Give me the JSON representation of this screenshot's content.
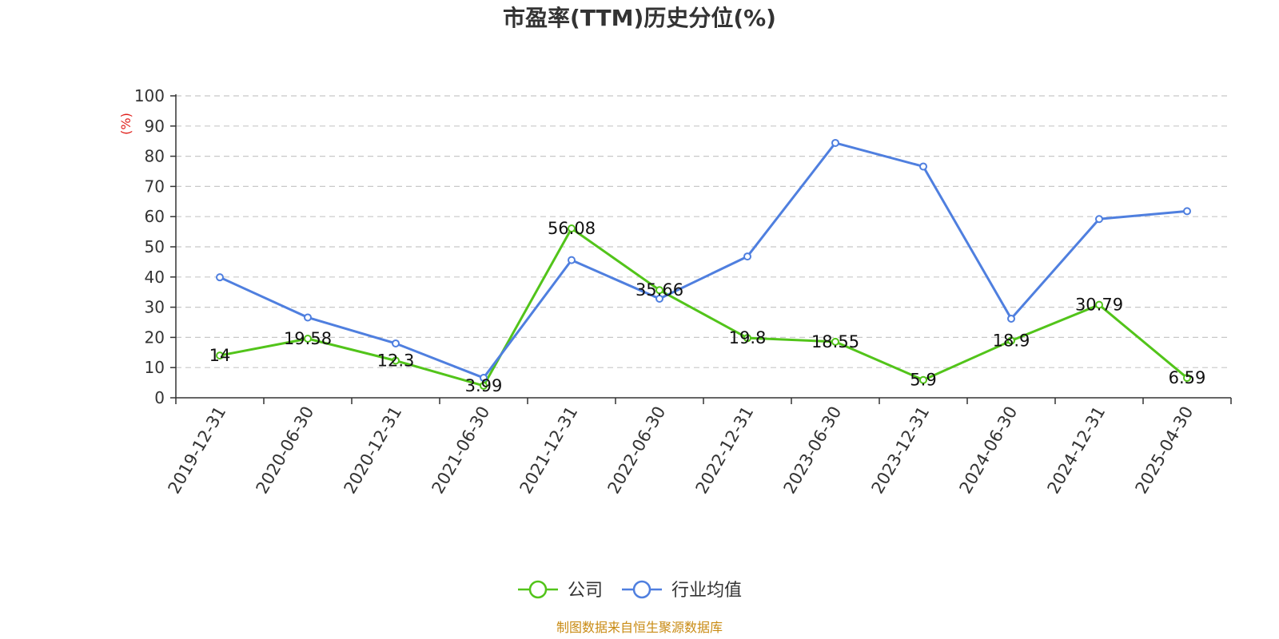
{
  "chart_data": {
    "type": "line",
    "title": "市盈率(TTM)历史分位(%)",
    "ylabel": "(%)",
    "xlabel": "",
    "ylim": [
      0,
      100
    ],
    "yticks": [
      0,
      10,
      20,
      30,
      40,
      50,
      60,
      70,
      80,
      90,
      100
    ],
    "grid": true,
    "legend_position": "bottom-center",
    "categories": [
      "2019-12-31",
      "2020-06-30",
      "2020-12-31",
      "2021-06-30",
      "2021-12-31",
      "2022-06-30",
      "2022-12-31",
      "2023-06-30",
      "2023-12-31",
      "2024-06-30",
      "2024-12-31",
      "2025-04-30"
    ],
    "series": [
      {
        "name": "公司",
        "color": "#52c41a",
        "show_labels": true,
        "values": [
          14,
          19.58,
          12.3,
          3.99,
          56.08,
          35.66,
          19.8,
          18.55,
          5.9,
          18.9,
          30.79,
          6.59
        ],
        "labels": [
          "14",
          "19.58",
          "12.3",
          "3.99",
          "56.08",
          "35.66",
          "19.8",
          "18.55",
          "5.9",
          "18.9",
          "30.79",
          "6.59"
        ]
      },
      {
        "name": "行业均值",
        "color": "#4f7fdf",
        "show_labels": false,
        "values": [
          39.9,
          26.6,
          18.0,
          6.6,
          45.6,
          32.8,
          46.8,
          84.4,
          76.6,
          26.2,
          59.2,
          61.8
        ]
      }
    ]
  },
  "footer": {
    "source": "制图数据来自恒生聚源数据库"
  }
}
